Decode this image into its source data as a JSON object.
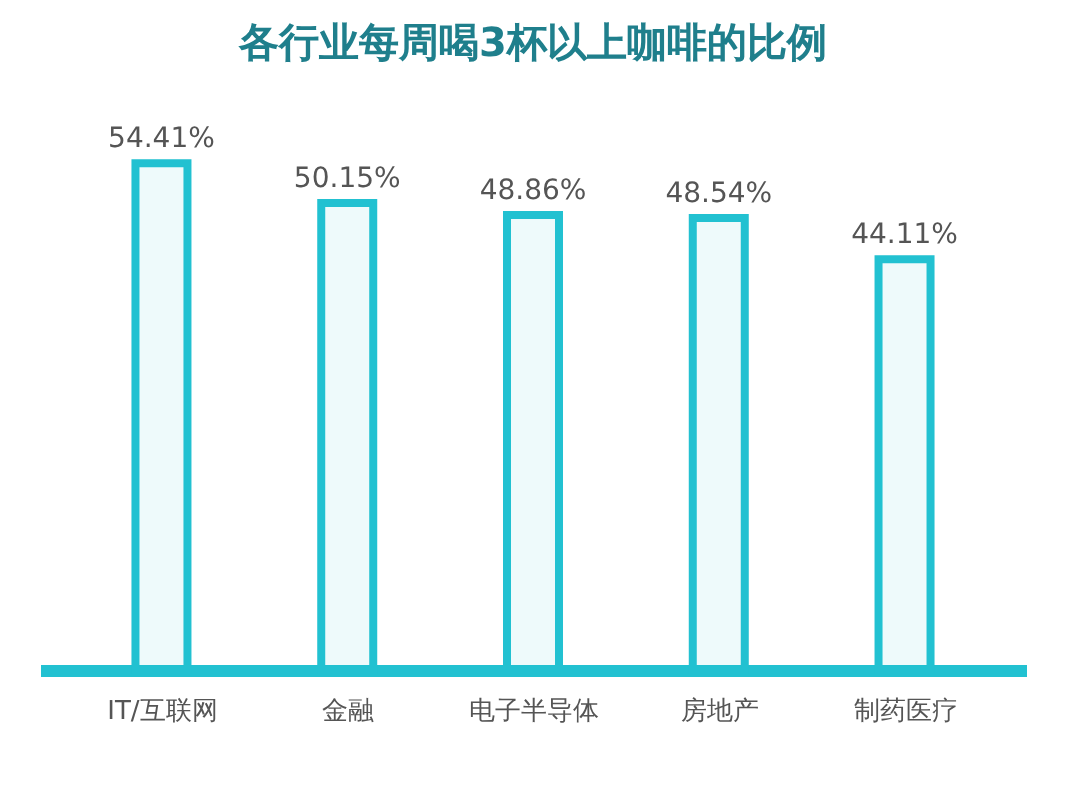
{
  "chart_data": {
    "type": "bar",
    "title": "各行业每周喝3杯以上咖啡的比例",
    "categories": [
      "IT/互联网",
      "金融",
      "电子半导体",
      "房地产",
      "制药医疗"
    ],
    "values": [
      54.41,
      50.15,
      48.86,
      48.54,
      44.11
    ],
    "value_labels": [
      "54.41%",
      "50.15%",
      "48.86%",
      "48.54%",
      "44.11%"
    ],
    "color": "#22c1d1"
  }
}
